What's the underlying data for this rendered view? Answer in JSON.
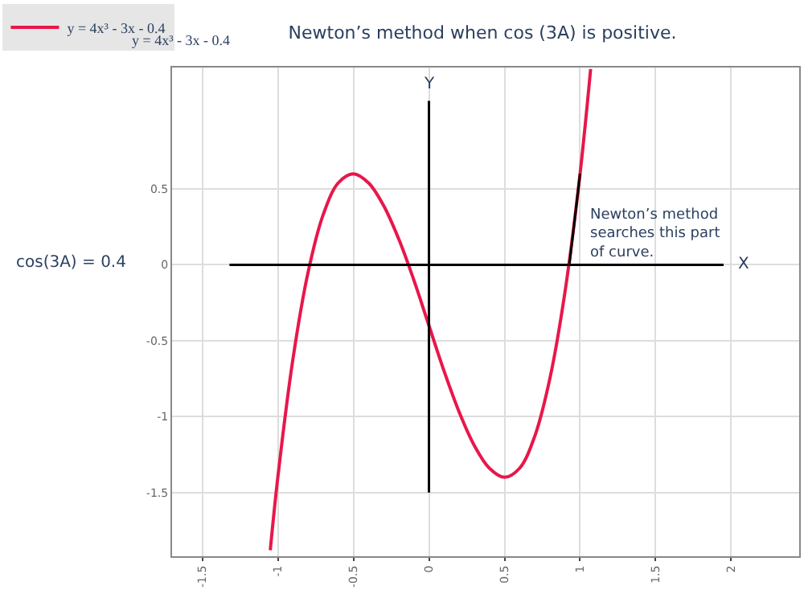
{
  "chart_data": {
    "type": "line",
    "title": "Newton’s method when cos (3A) is positive.",
    "x": [
      -1.05,
      -1.0,
      -0.9,
      -0.8,
      -0.7,
      -0.6,
      -0.5,
      -0.4,
      -0.3,
      -0.2,
      -0.1,
      0.0,
      0.1,
      0.2,
      0.3,
      0.4,
      0.5,
      0.6,
      0.7,
      0.8,
      0.9,
      1.0,
      1.07
    ],
    "series": [
      {
        "name": "y = 4x³ - 3x - 0.4",
        "color": "#e8174a",
        "values": [
          -1.88,
          -1.4,
          -0.62,
          -0.05,
          0.33,
          0.54,
          0.6,
          0.54,
          0.39,
          0.17,
          -0.1,
          -0.4,
          -0.7,
          -0.97,
          -1.19,
          -1.34,
          -1.4,
          -1.34,
          -1.13,
          -0.75,
          -0.18,
          0.6,
          1.29
        ]
      },
      {
        "color": "#000000",
        "x": [
          0.93,
          0.96,
          1.0
        ],
        "values": [
          0.01,
          0.26,
          0.6
        ]
      },
      {
        "name": "X",
        "color": "#000000",
        "x": [
          -1.32,
          1.95
        ],
        "values": [
          0,
          0
        ]
      },
      {
        "name": "Y",
        "color": "#000000",
        "x": [
          0,
          0
        ],
        "values": [
          -1.5,
          1.08
        ]
      }
    ],
    "xlim": [
      -1.7,
      2.45
    ],
    "ylim": [
      -1.92,
      1.3
    ],
    "xticks": [
      -1.5,
      -1,
      -0.5,
      0,
      0.5,
      1,
      1.5,
      2
    ],
    "yticks": [
      0.5,
      0,
      -0.5,
      -1,
      -1.5
    ],
    "grid": true,
    "legend": "top left",
    "marker": "none",
    "line_style": "solid",
    "annotations": [
      "y = 4x³ - 3x - 0.4",
      "cos(3A) = 0.4",
      "Newton’s method searches this part of curve."
    ]
  }
}
